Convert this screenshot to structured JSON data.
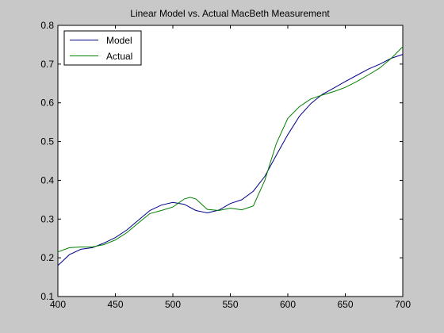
{
  "chart_data": {
    "type": "line",
    "title": "Linear Model vs. Actual MacBeth Measurement",
    "xlabel": "",
    "ylabel": "",
    "xlim": [
      400,
      700
    ],
    "ylim": [
      0.1,
      0.8
    ],
    "xticks": [
      400,
      450,
      500,
      550,
      600,
      650,
      700
    ],
    "yticks": [
      0.1,
      0.2,
      0.3,
      0.4,
      0.5,
      0.6,
      0.7,
      0.8
    ],
    "xtick_labels": [
      "400",
      "450",
      "500",
      "550",
      "600",
      "650",
      "700"
    ],
    "ytick_labels": [
      "0.1",
      "0.2",
      "0.3",
      "0.4",
      "0.5",
      "0.6",
      "0.7",
      "0.8"
    ],
    "grid": false,
    "legend_position": "top-left",
    "series": [
      {
        "name": "Model",
        "color": "#00008b",
        "x": [
          400,
          410,
          420,
          430,
          440,
          450,
          460,
          470,
          480,
          490,
          500,
          510,
          520,
          530,
          540,
          550,
          560,
          570,
          580,
          590,
          600,
          610,
          620,
          630,
          640,
          650,
          660,
          670,
          680,
          690,
          700
        ],
        "y": [
          0.18,
          0.208,
          0.222,
          0.226,
          0.238,
          0.252,
          0.272,
          0.297,
          0.322,
          0.336,
          0.343,
          0.338,
          0.322,
          0.316,
          0.323,
          0.34,
          0.35,
          0.372,
          0.41,
          0.465,
          0.518,
          0.565,
          0.598,
          0.622,
          0.638,
          0.655,
          0.671,
          0.687,
          0.7,
          0.715,
          0.725
        ]
      },
      {
        "name": "Actual",
        "color": "#008000",
        "x": [
          400,
          410,
          420,
          430,
          440,
          450,
          460,
          470,
          480,
          490,
          500,
          510,
          515,
          520,
          530,
          540,
          550,
          560,
          570,
          580,
          590,
          600,
          610,
          620,
          630,
          640,
          650,
          660,
          670,
          680,
          690,
          700
        ],
        "y": [
          0.215,
          0.226,
          0.228,
          0.228,
          0.234,
          0.246,
          0.265,
          0.29,
          0.314,
          0.322,
          0.331,
          0.352,
          0.356,
          0.352,
          0.325,
          0.322,
          0.328,
          0.324,
          0.334,
          0.4,
          0.495,
          0.56,
          0.59,
          0.61,
          0.62,
          0.629,
          0.64,
          0.655,
          0.672,
          0.69,
          0.715,
          0.745
        ]
      }
    ]
  }
}
